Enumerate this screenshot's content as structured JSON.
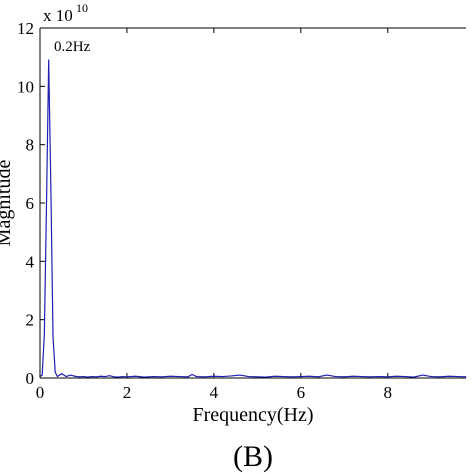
{
  "chart_data": {
    "type": "line",
    "xlabel": "Frequency(Hz)",
    "ylabel": "Magnitude",
    "x_ticks": [
      0,
      2,
      4,
      6,
      8
    ],
    "y_ticks": [
      0,
      2,
      4,
      6,
      8,
      10,
      12
    ],
    "xlim": [
      0,
      9.8
    ],
    "ylim": [
      0,
      12
    ],
    "y_multiplier": {
      "base": "x 10",
      "exponent": "10"
    },
    "peak_annotation": {
      "text": "0.2Hz",
      "x": 0.2,
      "y": 11
    },
    "panel_label": "(B)",
    "series": [
      {
        "color": "#1f1fb4",
        "x": [
          0.0,
          0.05,
          0.1,
          0.15,
          0.2,
          0.25,
          0.3,
          0.35,
          0.4,
          0.45,
          0.5,
          0.6,
          0.7,
          0.8,
          0.9,
          1.0,
          1.1,
          1.2,
          1.3,
          1.4,
          1.5,
          1.6,
          1.7,
          1.8,
          1.9,
          2.0,
          2.2,
          2.4,
          2.6,
          2.8,
          3.0,
          3.2,
          3.4,
          3.5,
          3.6,
          3.8,
          4.0,
          4.2,
          4.4,
          4.6,
          4.8,
          5.0,
          5.2,
          5.4,
          5.6,
          5.8,
          6.0,
          6.2,
          6.4,
          6.6,
          6.8,
          7.0,
          7.2,
          7.4,
          7.6,
          7.8,
          8.0,
          8.2,
          8.4,
          8.6,
          8.8,
          9.0,
          9.2,
          9.4,
          9.6,
          9.8
        ],
        "y": [
          0.05,
          0.1,
          1.5,
          6.0,
          10.9,
          6.5,
          1.4,
          0.2,
          0.05,
          0.1,
          0.15,
          0.05,
          0.1,
          0.06,
          0.04,
          0.05,
          0.03,
          0.05,
          0.04,
          0.06,
          0.05,
          0.08,
          0.04,
          0.03,
          0.05,
          0.04,
          0.06,
          0.03,
          0.05,
          0.04,
          0.06,
          0.05,
          0.04,
          0.12,
          0.05,
          0.04,
          0.06,
          0.05,
          0.07,
          0.1,
          0.05,
          0.04,
          0.03,
          0.06,
          0.05,
          0.04,
          0.05,
          0.06,
          0.04,
          0.1,
          0.05,
          0.04,
          0.06,
          0.05,
          0.04,
          0.05,
          0.04,
          0.06,
          0.05,
          0.03,
          0.1,
          0.05,
          0.04,
          0.06,
          0.05,
          0.04
        ]
      }
    ]
  }
}
